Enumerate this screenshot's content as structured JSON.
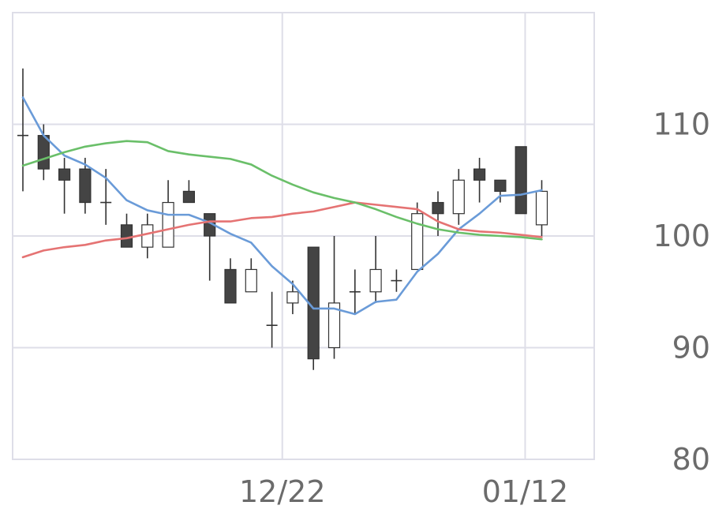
{
  "chart_data": {
    "type": "candlestick",
    "x_tick_labels": [
      "12/22",
      "01/12"
    ],
    "y_ticks": [
      80,
      90,
      100,
      110
    ],
    "y_tick_labels": [
      "80",
      "90",
      "100",
      "110"
    ],
    "ylim": [
      80,
      120
    ],
    "grid": true,
    "candles": [
      {
        "open": 109,
        "high": 115,
        "low": 104,
        "close": 109
      },
      {
        "open": 109,
        "high": 110,
        "low": 105,
        "close": 106
      },
      {
        "open": 106,
        "high": 107,
        "low": 102,
        "close": 105
      },
      {
        "open": 106,
        "high": 107,
        "low": 102,
        "close": 103
      },
      {
        "open": 103,
        "high": 106,
        "low": 101,
        "close": 103
      },
      {
        "open": 101,
        "high": 102,
        "low": 99,
        "close": 99
      },
      {
        "open": 99,
        "high": 102,
        "low": 98,
        "close": 101
      },
      {
        "open": 99,
        "high": 105,
        "low": 99,
        "close": 103
      },
      {
        "open": 104,
        "high": 105,
        "low": 103,
        "close": 103
      },
      {
        "open": 102,
        "high": 102,
        "low": 96,
        "close": 100
      },
      {
        "open": 97,
        "high": 98,
        "low": 94,
        "close": 94
      },
      {
        "open": 95,
        "high": 98,
        "low": 95,
        "close": 97
      },
      {
        "open": 92,
        "high": 95,
        "low": 90,
        "close": 92
      },
      {
        "open": 94,
        "high": 96,
        "low": 93,
        "close": 95
      },
      {
        "open": 99,
        "high": 99,
        "low": 88,
        "close": 89
      },
      {
        "open": 90,
        "high": 100,
        "low": 89,
        "close": 94
      },
      {
        "open": 95,
        "high": 97,
        "low": 93,
        "close": 95
      },
      {
        "open": 95,
        "high": 100,
        "low": 94,
        "close": 97
      },
      {
        "open": 96,
        "high": 97,
        "low": 95,
        "close": 96
      },
      {
        "open": 97,
        "high": 103,
        "low": 97,
        "close": 102
      },
      {
        "open": 103,
        "high": 104,
        "low": 100,
        "close": 102
      },
      {
        "open": 102,
        "high": 106,
        "low": 101,
        "close": 105
      },
      {
        "open": 106,
        "high": 107,
        "low": 103,
        "close": 105
      },
      {
        "open": 105,
        "high": 105,
        "low": 103,
        "close": 104
      },
      {
        "open": 108,
        "high": 108,
        "low": 102,
        "close": 102
      },
      {
        "open": 101,
        "high": 105,
        "low": 100,
        "close": 104
      }
    ],
    "x_tick_positions": [
      12.5,
      24.2
    ],
    "series": [
      {
        "color": "#6a9bd8",
        "values": [
          112.4,
          109.0,
          107.2,
          106.4,
          105.2,
          103.2,
          102.3,
          101.9,
          101.9,
          101.2,
          100.2,
          99.4,
          97.3,
          95.7,
          93.5,
          93.5,
          93.0,
          94.1,
          94.3,
          96.8,
          98.4,
          100.6,
          102.0,
          103.6,
          103.7,
          104.1
        ]
      },
      {
        "color": "#e57373",
        "values": [
          98.1,
          98.7,
          99.0,
          99.2,
          99.6,
          99.8,
          100.2,
          100.6,
          101.0,
          101.3,
          101.3,
          101.6,
          101.7,
          102.0,
          102.2,
          102.6,
          103.0,
          102.8,
          102.6,
          102.4,
          101.3,
          100.6,
          100.4,
          100.3,
          100.1,
          99.9
        ]
      },
      {
        "color": "#6abf69",
        "values": [
          106.3,
          106.9,
          107.5,
          108.0,
          108.3,
          108.5,
          108.4,
          107.6,
          107.3,
          107.1,
          106.9,
          106.4,
          105.4,
          104.6,
          103.9,
          103.4,
          103.0,
          102.4,
          101.7,
          101.1,
          100.6,
          100.3,
          100.1,
          100.0,
          99.9,
          99.7
        ]
      }
    ],
    "colors": {
      "up_body": "#ffffff",
      "down_body": "#444444",
      "wick": "#333333",
      "grid": "#dedee8",
      "axis_label": "#6b6b6b"
    }
  }
}
